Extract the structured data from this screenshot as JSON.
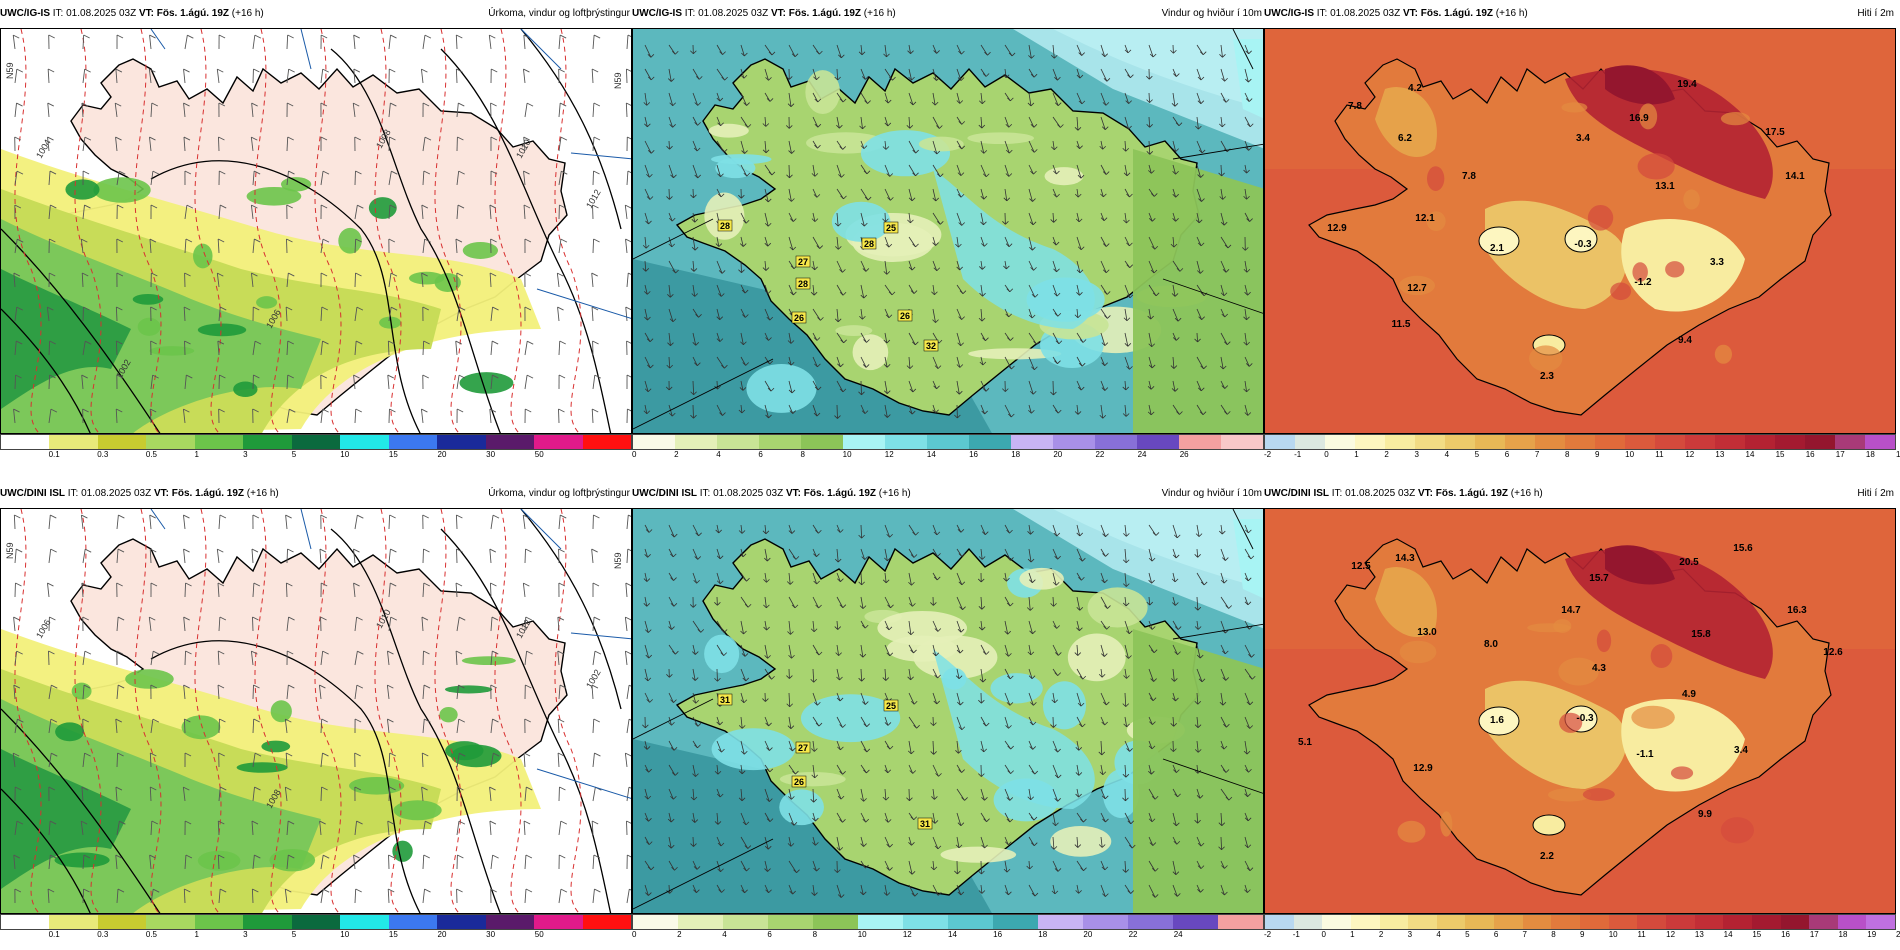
{
  "common": {
    "issue_time": "IT: 01.08.2025 03Z",
    "valid_time": "VT: Fös. 1.ágú. 19Z",
    "lead": "(+16 h)"
  },
  "models": {
    "top": "UWC/IG-IS",
    "bottom": "UWC/DINI ISL"
  },
  "titles": {
    "precip": "Úrkoma, vindur og loftþrýstingur",
    "wind": "Vindur og hviður í 10m",
    "temp": "Hiti í 2m"
  },
  "legends": {
    "precip": {
      "colors": [
        "#ffffff",
        "#e8ea7a",
        "#c8cc30",
        "#a8d860",
        "#6cc44a",
        "#1f9a3a",
        "#0b6a3e",
        "#22e8e8",
        "#3c78f0",
        "#1a2a9a",
        "#5a1a6a",
        "#e01a8a",
        "#ff1010"
      ],
      "labels": [
        "0.1",
        "0.3",
        "0.5",
        "1",
        "3",
        "5",
        "10",
        "15",
        "20",
        "30",
        "50"
      ]
    },
    "wind_top": {
      "colors": [
        "#fafae8",
        "#e4f0b8",
        "#c8e496",
        "#a8d470",
        "#8cc458",
        "#a8f4f4",
        "#7ee0e6",
        "#5cc8d0",
        "#3ca8b0",
        "#c8b4f4",
        "#a890e8",
        "#8870d8",
        "#6848c0",
        "#f4a0a0",
        "#f8c8c8"
      ],
      "labels": [
        "0",
        "2",
        "4",
        "6",
        "8",
        "10",
        "12",
        "14",
        "16",
        "18",
        "20",
        "22",
        "24",
        "26"
      ]
    },
    "wind_bottom": {
      "colors": [
        "#fafae8",
        "#e4f0b8",
        "#c8e496",
        "#a8d470",
        "#8cc458",
        "#a8f4f4",
        "#7ee0e6",
        "#5cc8d0",
        "#3ca8b0",
        "#c8b4f4",
        "#a890e8",
        "#8870d8",
        "#6848c0",
        "#f4a0a0"
      ],
      "labels": [
        "0",
        "2",
        "4",
        "6",
        "8",
        "10",
        "12",
        "14",
        "16",
        "18",
        "20",
        "22",
        "24"
      ]
    },
    "temp_top": {
      "colors": [
        "#b8d8f0",
        "#dce8e0",
        "#fbfbe0",
        "#fdf6c0",
        "#f8eca0",
        "#f2dc84",
        "#ecca6a",
        "#e8b856",
        "#e6a24a",
        "#e48c40",
        "#e27a3c",
        "#e06a3a",
        "#dc5a3c",
        "#d44a3c",
        "#cc3a3a",
        "#c22e36",
        "#b42232",
        "#a41a30",
        "#94162e",
        "#a83a78",
        "#b850c8"
      ],
      "labels": [
        "-2",
        "-1",
        "0",
        "1",
        "2",
        "3",
        "4",
        "5",
        "6",
        "7",
        "8",
        "9",
        "10",
        "11",
        "12",
        "13",
        "14",
        "15",
        "16",
        "17",
        "18",
        "19",
        "20"
      ]
    },
    "temp_bottom": {
      "colors": [
        "#b8d8f0",
        "#dce8e0",
        "#fbfbe0",
        "#fdf6c0",
        "#f8eca0",
        "#f2dc84",
        "#ecca6a",
        "#e8b856",
        "#e6a24a",
        "#e48c40",
        "#e27a3c",
        "#e06a3a",
        "#dc5a3c",
        "#d44a3c",
        "#cc3a3a",
        "#c22e36",
        "#b42232",
        "#a41a30",
        "#94162e",
        "#a83a78",
        "#b850c8",
        "#c070e0"
      ],
      "labels": [
        "-2",
        "-1",
        "0",
        "1",
        "2",
        "3",
        "4",
        "5",
        "6",
        "7",
        "8",
        "9",
        "10",
        "11",
        "12",
        "13",
        "14",
        "15",
        "16",
        "17",
        "18",
        "19",
        "20",
        "21"
      ]
    }
  },
  "temp_labels_top": [
    "4.2",
    "19.4",
    "7.8",
    "6.2",
    "16.9",
    "3.4",
    "17.5",
    "7.8",
    "14.1",
    "13.1",
    "12.9",
    "12.1",
    "2.1",
    "-0.3",
    "3.3",
    "-1.2",
    "12.7",
    "11.5",
    "9.4",
    "2.3"
  ],
  "temp_labels_bottom": [
    "12.5",
    "14.3",
    "20.5",
    "15.6",
    "15.7",
    "14.7",
    "16.3",
    "13.0",
    "8.0",
    "15.8",
    "12.6",
    "4.3",
    "4.9",
    "1.6",
    "-0.3",
    "5.1",
    "-1.1",
    "3.4",
    "12.9",
    "9.9",
    "2.2"
  ],
  "wind_max_top": [
    "28",
    "25",
    "28",
    "27",
    "28",
    "26",
    "26",
    "32"
  ],
  "wind_max_bottom": [
    "31",
    "25",
    "27",
    "26",
    "31"
  ],
  "isobar_labels_top": [
    "1004",
    "1006",
    "1008",
    "1010",
    "1012",
    "1002"
  ],
  "isobar_labels_bottom": [
    "1006",
    "1008",
    "1010",
    "1012",
    "1002"
  ],
  "colors": {
    "land_pink": "#fbe6de",
    "sea_white": "#ffffff"
  }
}
